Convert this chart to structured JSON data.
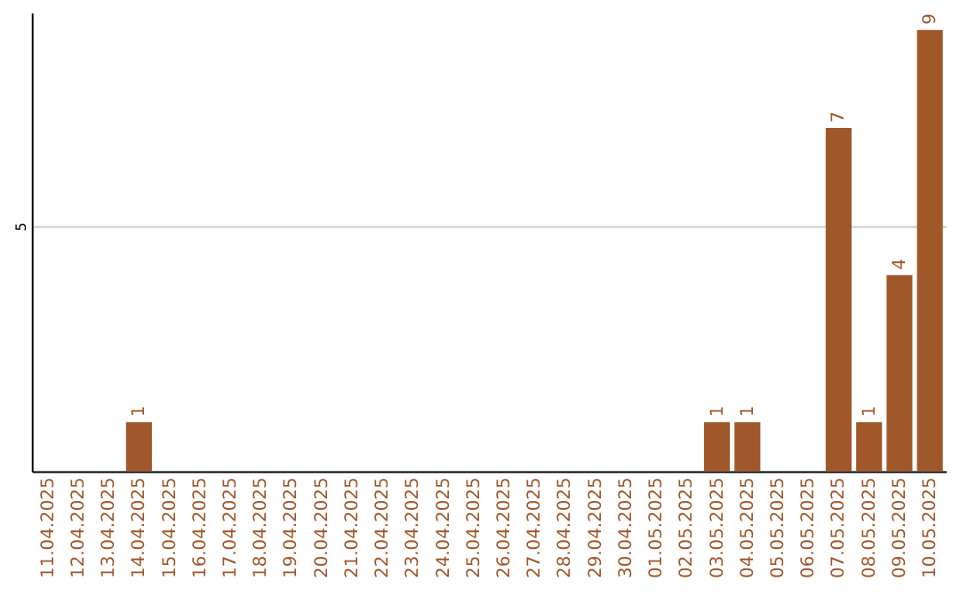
{
  "chart_data": {
    "type": "bar",
    "categories": [
      "11.04.2025",
      "12.04.2025",
      "13.04.2025",
      "14.04.2025",
      "15.04.2025",
      "16.04.2025",
      "17.04.2025",
      "18.04.2025",
      "19.04.2025",
      "20.04.2025",
      "21.04.2025",
      "22.04.2025",
      "23.04.2025",
      "24.04.2025",
      "25.04.2025",
      "26.04.2025",
      "27.04.2025",
      "28.04.2025",
      "29.04.2025",
      "30.04.2025",
      "01.05.2025",
      "02.05.2025",
      "03.05.2025",
      "04.05.2025",
      "05.05.2025",
      "06.05.2025",
      "07.05.2025",
      "08.05.2025",
      "09.05.2025",
      "10.05.2025"
    ],
    "values": [
      0,
      0,
      0,
      1,
      0,
      0,
      0,
      0,
      0,
      0,
      0,
      0,
      0,
      0,
      0,
      0,
      0,
      0,
      0,
      0,
      0,
      0,
      1,
      1,
      0,
      0,
      7,
      1,
      4,
      9
    ],
    "value_labels": [
      null,
      null,
      null,
      "1",
      null,
      null,
      null,
      null,
      null,
      null,
      null,
      null,
      null,
      null,
      null,
      null,
      null,
      null,
      null,
      null,
      null,
      null,
      "1",
      "1",
      null,
      null,
      "7",
      "1",
      "4",
      "9"
    ],
    "color": "#a0572a",
    "ylim": [
      0,
      9.35
    ],
    "yticks": [
      5
    ],
    "grid": "y"
  }
}
